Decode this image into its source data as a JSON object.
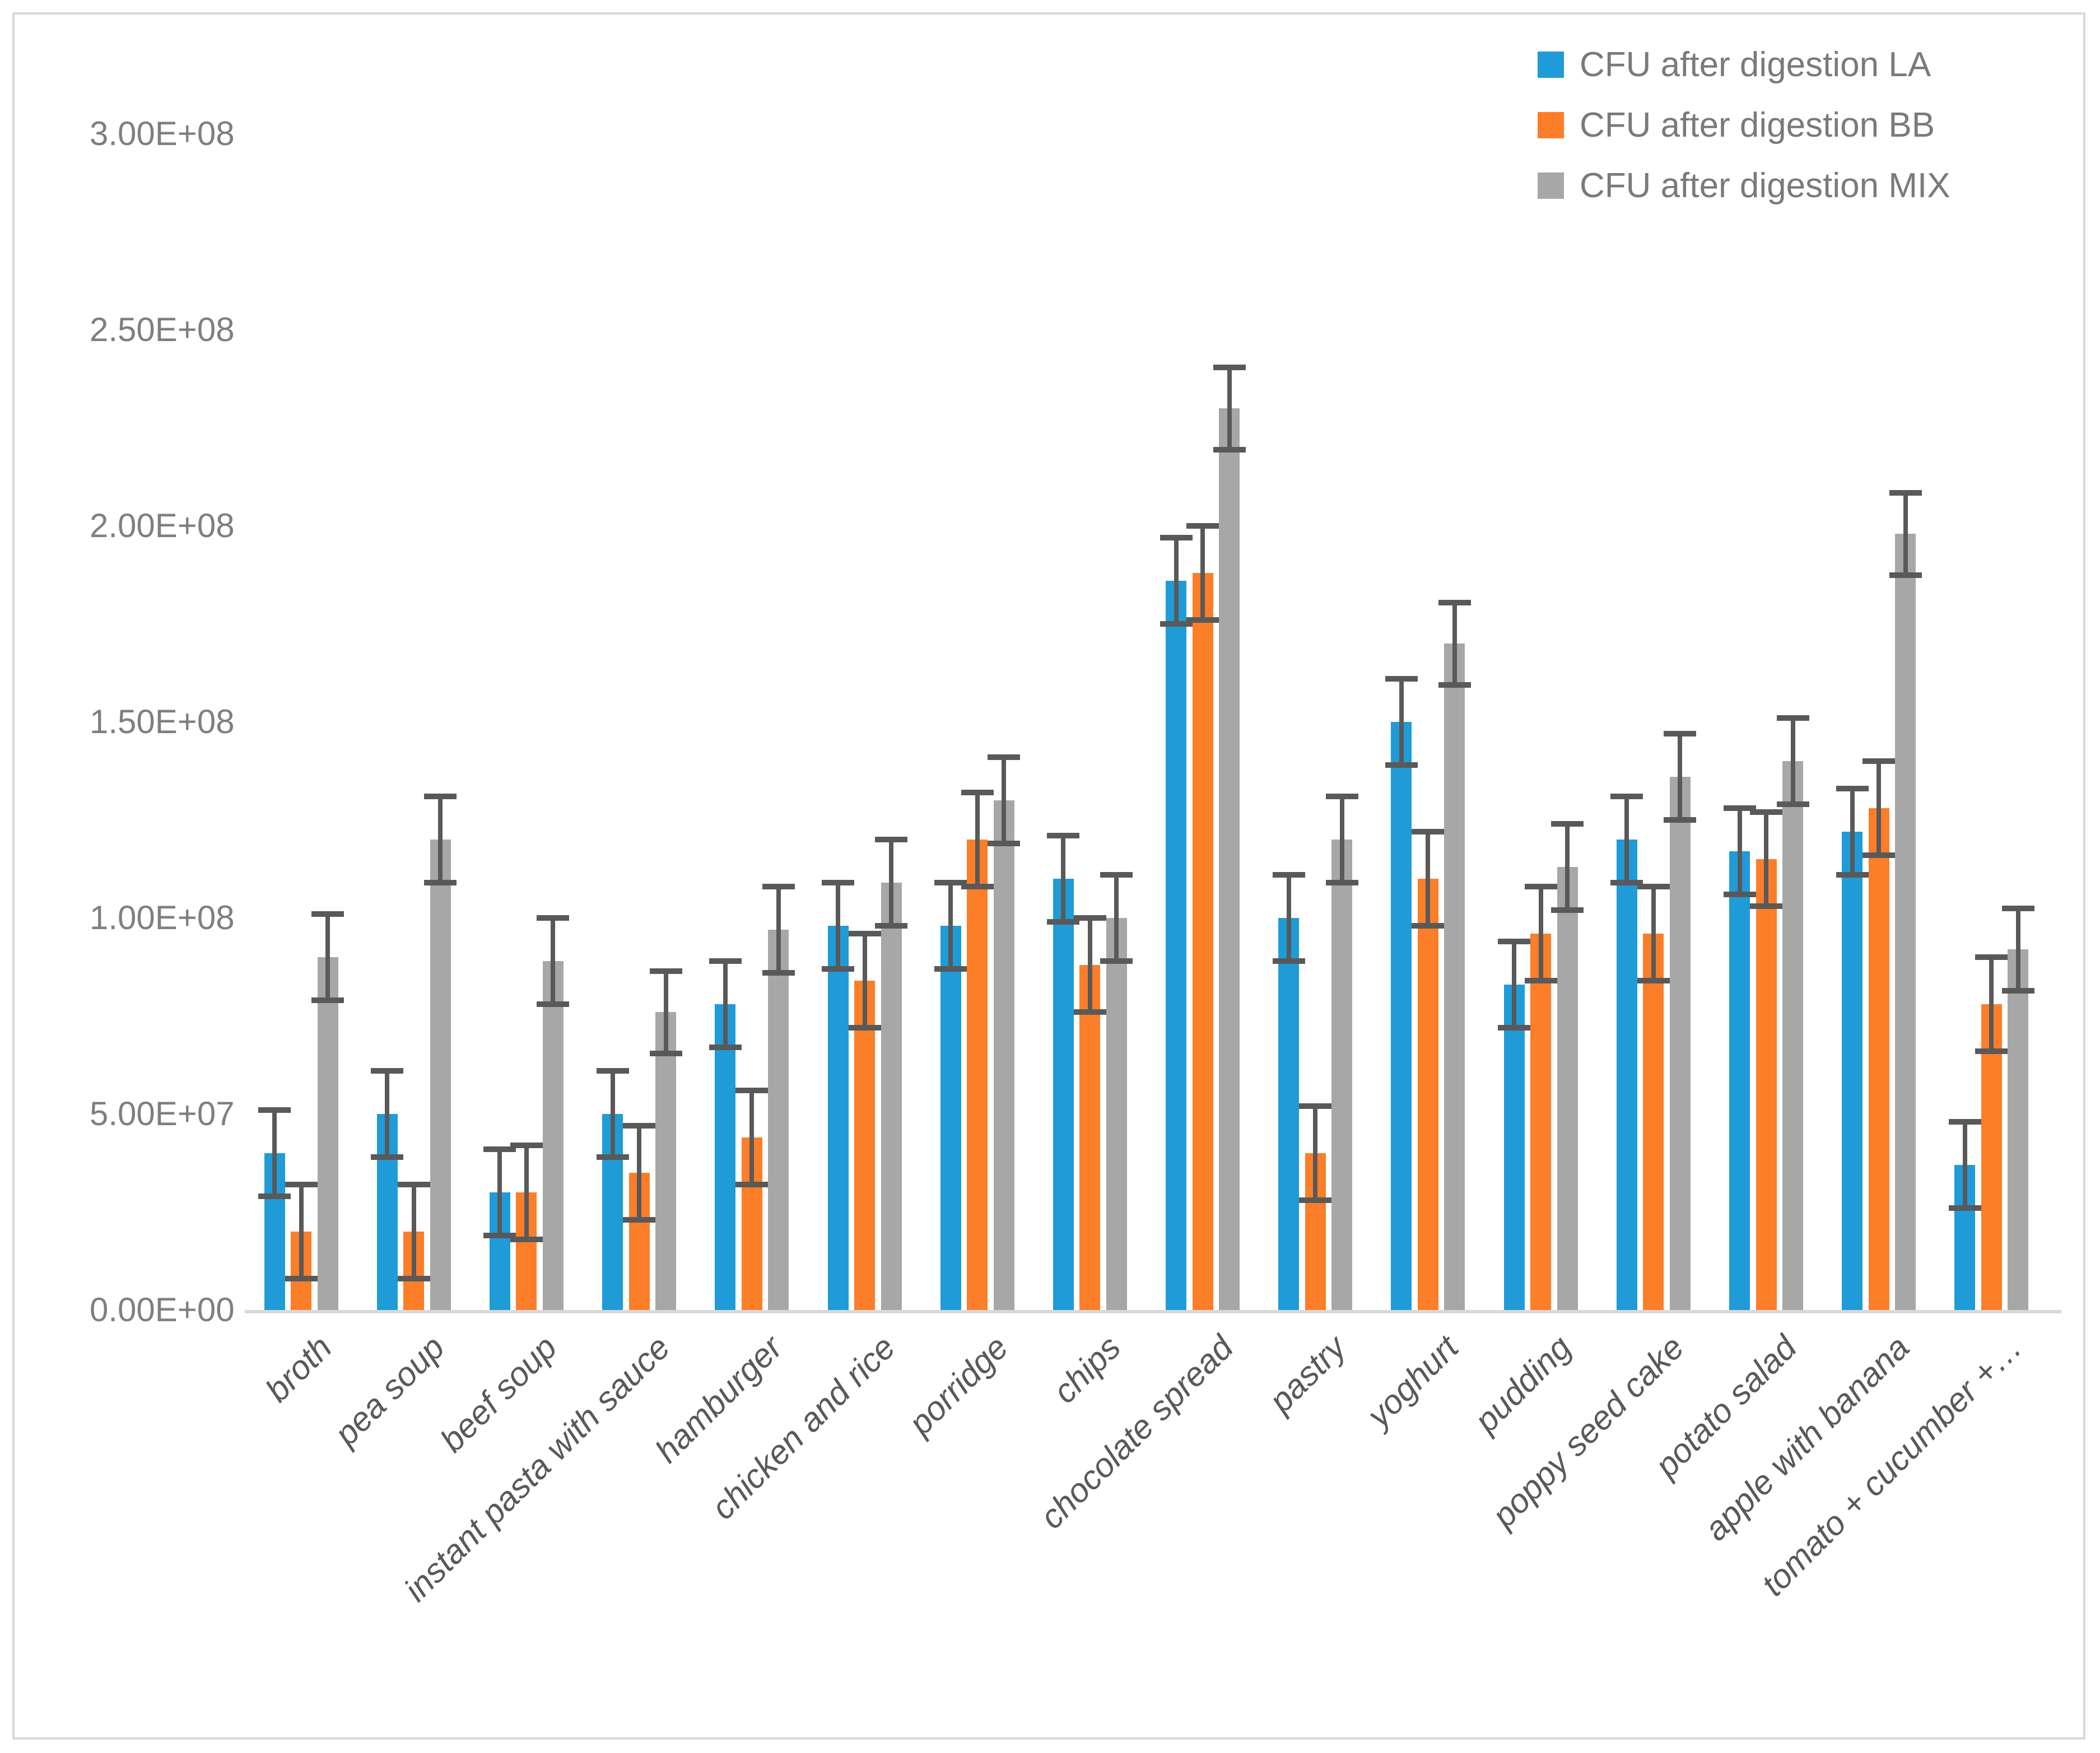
{
  "chart_data": {
    "type": "bar",
    "title": "",
    "grid": false,
    "legend_position": "top-right",
    "categories": [
      "broth",
      "pea soup",
      "beef soup",
      "instant pasta with sauce",
      "hamburger",
      "chicken and rice",
      "porridge",
      "chips",
      "chocolate spread",
      "pastry",
      "yoghurt",
      "pudding",
      "poppy seed cake",
      "potato salad",
      "apple with banana",
      "tomato + cucumber +…"
    ],
    "series": [
      {
        "name": "CFU after digestion LA",
        "color": "#1F9BD8",
        "values": [
          40000000.0,
          50000000.0,
          30000000.0,
          50000000.0,
          78000000.0,
          98000000.0,
          98000000.0,
          110000000.0,
          186000000.0,
          100000000.0,
          150000000.0,
          83000000.0,
          120000000.0,
          117000000.0,
          122000000.0,
          37000000.0
        ],
        "errors": [
          11000000.0,
          11000000.0,
          11000000.0,
          11000000.0,
          11000000.0,
          11000000.0,
          11000000.0,
          11000000.0,
          11000000.0,
          11000000.0,
          11000000.0,
          11000000.0,
          11000000.0,
          11000000.0,
          11000000.0,
          11000000.0
        ]
      },
      {
        "name": "CFU after digestion BB",
        "color": "#FC7E28",
        "values": [
          20000000.0,
          20000000.0,
          30000000.0,
          35000000.0,
          44000000.0,
          84000000.0,
          120000000.0,
          88000000.0,
          188000000.0,
          40000000.0,
          110000000.0,
          96000000.0,
          96000000.0,
          115000000.0,
          128000000.0,
          78000000.0
        ],
        "errors": [
          12000000.0,
          12000000.0,
          12000000.0,
          12000000.0,
          12000000.0,
          12000000.0,
          12000000.0,
          12000000.0,
          12000000.0,
          12000000.0,
          12000000.0,
          12000000.0,
          12000000.0,
          12000000.0,
          12000000.0,
          12000000.0
        ]
      },
      {
        "name": "CFU after digestion MIX",
        "color": "#A7A7A7",
        "values": [
          90000000.0,
          120000000.0,
          89000000.0,
          76000000.0,
          97000000.0,
          109000000.0,
          130000000.0,
          100000000.0,
          230000000.0,
          120000000.0,
          170000000.0,
          113000000.0,
          136000000.0,
          140000000.0,
          198000000.0,
          92000000.0
        ],
        "errors": [
          11000000.0,
          11000000.0,
          11000000.0,
          10500000.0,
          11000000.0,
          11000000.0,
          11000000.0,
          11000000.0,
          10500000.0,
          11000000.0,
          10500000.0,
          11000000.0,
          11000000.0,
          11000000.0,
          10500000.0,
          10500000.0
        ]
      }
    ],
    "y_axis": {
      "min": 0,
      "max": 300000000.0,
      "tick_step": 50000000.0,
      "tick_labels": [
        "0.00E+00",
        "5.00E+07",
        "1.00E+08",
        "1.50E+08",
        "2.00E+08",
        "2.50E+08",
        "3.00E+08"
      ]
    },
    "error_bar_color": "#595959",
    "axis_line_color": "#D9D9D9"
  }
}
